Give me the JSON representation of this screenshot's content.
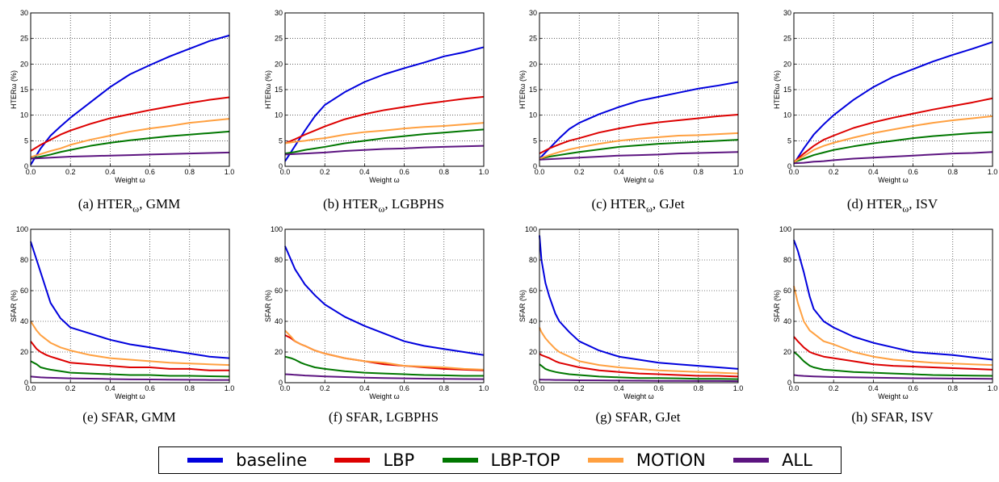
{
  "series_colors": {
    "baseline": "#0000dd",
    "LBP": "#dd0000",
    "LBP-TOP": "#007700",
    "MOTION": "#ffa040",
    "ALL": "#5c1480"
  },
  "legend": [
    {
      "name": "baseline",
      "color": "#0000dd"
    },
    {
      "name": "LBP",
      "color": "#dd0000"
    },
    {
      "name": "LBP-TOP",
      "color": "#007700"
    },
    {
      "name": "MOTION",
      "color": "#ffa040"
    },
    {
      "name": "ALL",
      "color": "#5c1480"
    }
  ],
  "chart_data": [
    {
      "type": "line",
      "caption_prefix": "(a) HTER",
      "caption_sub": "ω",
      "caption_suffix": ", GMM",
      "xlabel": "Weight ω",
      "ylabel": "HTERω (%)",
      "grid": true,
      "xlim": [
        0,
        1
      ],
      "ylim": [
        0,
        30
      ],
      "xticks": [
        "0.0",
        "0.2",
        "0.4",
        "0.6",
        "0.8",
        "1.0"
      ],
      "yticks": [
        "0",
        "5",
        "10",
        "15",
        "20",
        "25",
        "30"
      ],
      "x": [
        0,
        0.05,
        0.1,
        0.15,
        0.2,
        0.3,
        0.4,
        0.5,
        0.6,
        0.7,
        0.8,
        0.9,
        1.0
      ],
      "series": [
        {
          "name": "baseline",
          "values": [
            0.3,
            3.5,
            6.0,
            7.8,
            9.5,
            12.5,
            15.5,
            18.0,
            19.8,
            21.5,
            23.0,
            24.5,
            25.6
          ]
        },
        {
          "name": "LBP",
          "values": [
            3.0,
            4.2,
            5.2,
            6.2,
            7.0,
            8.3,
            9.4,
            10.2,
            11.0,
            11.7,
            12.4,
            13.0,
            13.5
          ]
        },
        {
          "name": "LBP-TOP",
          "values": [
            1.5,
            1.9,
            2.3,
            2.8,
            3.2,
            4.0,
            4.6,
            5.1,
            5.5,
            5.9,
            6.2,
            6.5,
            6.8
          ]
        },
        {
          "name": "MOTION",
          "values": [
            1.8,
            2.4,
            3.0,
            3.5,
            4.2,
            5.2,
            6.0,
            6.8,
            7.4,
            7.9,
            8.5,
            8.9,
            9.3
          ]
        },
        {
          "name": "ALL",
          "values": [
            1.5,
            1.6,
            1.7,
            1.8,
            1.9,
            2.0,
            2.1,
            2.2,
            2.3,
            2.4,
            2.5,
            2.6,
            2.7
          ]
        }
      ]
    },
    {
      "type": "line",
      "caption_prefix": "(b) HTER",
      "caption_sub": "ω",
      "caption_suffix": ", LGBPHS",
      "xlabel": "Weight ω",
      "ylabel": "HTERω (%)",
      "grid": true,
      "xlim": [
        0,
        1
      ],
      "ylim": [
        0,
        30
      ],
      "xticks": [
        "0.0",
        "0.2",
        "0.4",
        "0.6",
        "0.8",
        "1.0"
      ],
      "yticks": [
        "0",
        "5",
        "10",
        "15",
        "20",
        "25",
        "30"
      ],
      "x": [
        0,
        0.05,
        0.1,
        0.15,
        0.2,
        0.3,
        0.4,
        0.5,
        0.6,
        0.7,
        0.8,
        0.9,
        1.0
      ],
      "series": [
        {
          "name": "baseline",
          "values": [
            1.0,
            4.0,
            7.0,
            9.8,
            12.0,
            14.5,
            16.5,
            18.0,
            19.2,
            20.3,
            21.5,
            22.3,
            23.3
          ]
        },
        {
          "name": "LBP",
          "values": [
            4.5,
            5.3,
            6.2,
            7.0,
            7.8,
            9.2,
            10.2,
            11.0,
            11.6,
            12.2,
            12.7,
            13.2,
            13.6
          ]
        },
        {
          "name": "LBP-TOP",
          "values": [
            2.5,
            2.8,
            3.2,
            3.5,
            3.8,
            4.5,
            5.0,
            5.5,
            5.9,
            6.3,
            6.6,
            6.9,
            7.2
          ]
        },
        {
          "name": "MOTION",
          "values": [
            4.5,
            4.8,
            5.0,
            5.3,
            5.5,
            6.2,
            6.7,
            7.0,
            7.4,
            7.7,
            7.9,
            8.2,
            8.5
          ]
        },
        {
          "name": "ALL",
          "values": [
            2.3,
            2.4,
            2.5,
            2.6,
            2.7,
            3.0,
            3.2,
            3.4,
            3.5,
            3.7,
            3.8,
            3.9,
            4.0
          ]
        }
      ]
    },
    {
      "type": "line",
      "caption_prefix": "(c) HTER",
      "caption_sub": "ω",
      "caption_suffix": ", GJet",
      "xlabel": "Weight ω",
      "ylabel": "HTERω (%)",
      "grid": true,
      "xlim": [
        0,
        1
      ],
      "ylim": [
        0,
        30
      ],
      "xticks": [
        "0.0",
        "0.2",
        "0.4",
        "0.6",
        "0.8",
        "1.0"
      ],
      "yticks": [
        "0",
        "5",
        "10",
        "15",
        "20",
        "25",
        "30"
      ],
      "x": [
        0,
        0.05,
        0.1,
        0.15,
        0.2,
        0.3,
        0.4,
        0.5,
        0.6,
        0.7,
        0.8,
        0.9,
        1.0
      ],
      "series": [
        {
          "name": "baseline",
          "values": [
            1.5,
            3.5,
            5.5,
            7.3,
            8.5,
            10.2,
            11.6,
            12.8,
            13.6,
            14.4,
            15.2,
            15.8,
            16.5
          ]
        },
        {
          "name": "LBP",
          "values": [
            2.5,
            3.5,
            4.3,
            5.0,
            5.5,
            6.6,
            7.4,
            8.1,
            8.6,
            9.0,
            9.4,
            9.8,
            10.1
          ]
        },
        {
          "name": "LBP-TOP",
          "values": [
            1.5,
            1.9,
            2.2,
            2.5,
            2.8,
            3.3,
            3.8,
            4.1,
            4.4,
            4.6,
            4.8,
            5.0,
            5.2
          ]
        },
        {
          "name": "MOTION",
          "values": [
            1.5,
            2.2,
            2.8,
            3.3,
            3.7,
            4.4,
            5.0,
            5.4,
            5.7,
            6.0,
            6.1,
            6.3,
            6.5
          ]
        },
        {
          "name": "ALL",
          "values": [
            1.3,
            1.4,
            1.5,
            1.6,
            1.7,
            1.9,
            2.1,
            2.2,
            2.3,
            2.5,
            2.6,
            2.7,
            2.8
          ]
        }
      ]
    },
    {
      "type": "line",
      "caption_prefix": "(d) HTER",
      "caption_sub": "ω",
      "caption_suffix": ", ISV",
      "xlabel": "Weight ω",
      "ylabel": "HTERω (%)",
      "grid": true,
      "xlim": [
        0,
        1
      ],
      "ylim": [
        0,
        30
      ],
      "xticks": [
        "0.0",
        "0.2",
        "0.4",
        "0.6",
        "0.8",
        "1.0"
      ],
      "yticks": [
        "0",
        "5",
        "10",
        "15",
        "20",
        "25",
        "30"
      ],
      "x": [
        0,
        0.05,
        0.1,
        0.15,
        0.2,
        0.3,
        0.4,
        0.5,
        0.6,
        0.7,
        0.8,
        0.9,
        1.0
      ],
      "series": [
        {
          "name": "baseline",
          "values": [
            0.5,
            3.5,
            6.2,
            8.2,
            10.0,
            13.0,
            15.5,
            17.5,
            19.0,
            20.5,
            21.8,
            23.0,
            24.3
          ]
        },
        {
          "name": "LBP",
          "values": [
            0.8,
            2.5,
            4.0,
            5.2,
            6.0,
            7.5,
            8.6,
            9.5,
            10.3,
            11.1,
            11.8,
            12.5,
            13.3
          ]
        },
        {
          "name": "LBP-TOP",
          "values": [
            0.8,
            1.5,
            2.2,
            2.7,
            3.2,
            3.9,
            4.5,
            5.0,
            5.5,
            5.9,
            6.2,
            6.5,
            6.7
          ]
        },
        {
          "name": "MOTION",
          "values": [
            0.8,
            2.0,
            3.2,
            4.0,
            4.6,
            5.6,
            6.5,
            7.2,
            7.9,
            8.5,
            9.0,
            9.4,
            9.8
          ]
        },
        {
          "name": "ALL",
          "values": [
            0.6,
            0.7,
            0.9,
            1.0,
            1.2,
            1.5,
            1.7,
            1.9,
            2.1,
            2.3,
            2.5,
            2.6,
            2.8
          ]
        }
      ]
    },
    {
      "type": "line",
      "caption_prefix": "(e) SFAR, GMM",
      "caption_sub": "",
      "caption_suffix": "",
      "xlabel": "Weight ω",
      "ylabel": "SFAR (%)",
      "grid": true,
      "xlim": [
        0,
        1
      ],
      "ylim": [
        0,
        100
      ],
      "xticks": [
        "0.0",
        "0.2",
        "0.4",
        "0.6",
        "0.8",
        "1.0"
      ],
      "yticks": [
        "0",
        "20",
        "40",
        "60",
        "80",
        "100"
      ],
      "x": [
        0,
        0.03,
        0.05,
        0.08,
        0.1,
        0.15,
        0.2,
        0.3,
        0.4,
        0.5,
        0.6,
        0.7,
        0.8,
        0.9,
        1.0
      ],
      "series": [
        {
          "name": "baseline",
          "values": [
            92,
            80,
            72,
            60,
            52,
            42,
            36,
            32,
            28,
            25,
            23,
            21,
            19,
            17,
            16
          ]
        },
        {
          "name": "LBP",
          "values": [
            27,
            22,
            20,
            18,
            17,
            15,
            13,
            12,
            11,
            10,
            10,
            9,
            9,
            8,
            8
          ]
        },
        {
          "name": "LBP-TOP",
          "values": [
            14,
            12,
            10,
            9,
            8.5,
            7.5,
            6.5,
            6,
            5.5,
            5,
            5,
            4.5,
            4.5,
            4.2,
            4
          ]
        },
        {
          "name": "MOTION",
          "values": [
            40,
            34,
            31,
            28,
            26,
            23,
            21,
            18,
            16,
            15,
            14,
            13,
            12.5,
            12,
            11.5
          ]
        },
        {
          "name": "ALL",
          "values": [
            4,
            3.7,
            3.5,
            3.3,
            3.2,
            3,
            2.8,
            2.6,
            2.4,
            2.2,
            2.1,
            2,
            1.9,
            1.8,
            1.8
          ]
        }
      ]
    },
    {
      "type": "line",
      "caption_prefix": "(f) SFAR, LGBPHS",
      "caption_sub": "",
      "caption_suffix": "",
      "xlabel": "Weight ω",
      "ylabel": "SFAR (%)",
      "grid": true,
      "xlim": [
        0,
        1
      ],
      "ylim": [
        0,
        100
      ],
      "xticks": [
        "0.0",
        "0.2",
        "0.4",
        "0.6",
        "0.8",
        "1.0"
      ],
      "yticks": [
        "0",
        "20",
        "40",
        "60",
        "80",
        "100"
      ],
      "x": [
        0,
        0.03,
        0.05,
        0.08,
        0.1,
        0.15,
        0.2,
        0.3,
        0.4,
        0.5,
        0.6,
        0.7,
        0.8,
        0.9,
        1.0
      ],
      "series": [
        {
          "name": "baseline",
          "values": [
            89,
            80,
            74,
            68,
            64,
            57,
            51,
            43,
            37,
            32,
            27,
            24,
            22,
            20,
            18
          ]
        },
        {
          "name": "LBP",
          "values": [
            31,
            29,
            27,
            25,
            24,
            21,
            19,
            16,
            14,
            12,
            11,
            10,
            9,
            8.5,
            8
          ]
        },
        {
          "name": "LBP-TOP",
          "values": [
            17,
            16,
            15,
            13,
            12,
            10,
            9,
            7.5,
            6.5,
            6,
            5.5,
            5,
            4.8,
            4.5,
            4.5
          ]
        },
        {
          "name": "MOTION",
          "values": [
            34,
            30,
            27,
            25,
            24,
            21,
            19,
            16,
            14,
            13,
            11,
            10.5,
            10,
            9,
            8.5
          ]
        },
        {
          "name": "ALL",
          "values": [
            5.5,
            5.3,
            5.1,
            4.9,
            4.7,
            4.4,
            4.1,
            3.7,
            3.3,
            3,
            2.8,
            2.6,
            2.5,
            2.4,
            2.3
          ]
        }
      ]
    },
    {
      "type": "line",
      "caption_prefix": "(g) SFAR, GJet",
      "caption_sub": "",
      "caption_suffix": "",
      "xlabel": "Weight ω",
      "ylabel": "SFAR (%)",
      "grid": true,
      "xlim": [
        0,
        1
      ],
      "ylim": [
        0,
        100
      ],
      "xticks": [
        "0.0",
        "0.2",
        "0.4",
        "0.6",
        "0.8",
        "1.0"
      ],
      "yticks": [
        "0",
        "20",
        "40",
        "60",
        "80",
        "100"
      ],
      "x": [
        0,
        0.01,
        0.03,
        0.05,
        0.08,
        0.1,
        0.15,
        0.2,
        0.3,
        0.4,
        0.5,
        0.6,
        0.7,
        0.8,
        0.9,
        1.0
      ],
      "series": [
        {
          "name": "baseline",
          "values": [
            96,
            80,
            65,
            56,
            45,
            40,
            33,
            27,
            21,
            17,
            15,
            13,
            12,
            11,
            10,
            9
          ]
        },
        {
          "name": "LBP",
          "values": [
            19,
            18,
            17,
            16,
            14,
            13,
            11.5,
            10,
            8,
            7,
            6,
            5.5,
            5,
            4.5,
            4.5,
            4
          ]
        },
        {
          "name": "LBP-TOP",
          "values": [
            12,
            11,
            9,
            8,
            7,
            6.5,
            5.5,
            5,
            4,
            3.5,
            3,
            3,
            2.8,
            2.5,
            2.5,
            2.3
          ]
        },
        {
          "name": "MOTION",
          "values": [
            36,
            33,
            29,
            26,
            22,
            20,
            17,
            14,
            11.5,
            10,
            9,
            8,
            7.5,
            7,
            6.5,
            6
          ]
        },
        {
          "name": "ALL",
          "values": [
            2,
            2,
            1.9,
            1.9,
            1.8,
            1.8,
            1.7,
            1.6,
            1.5,
            1.4,
            1.3,
            1.2,
            1.2,
            1.1,
            1.1,
            1
          ]
        }
      ]
    },
    {
      "type": "line",
      "caption_prefix": "(h) SFAR, ISV",
      "caption_sub": "",
      "caption_suffix": "",
      "xlabel": "Weight ω",
      "ylabel": "SFAR (%)",
      "grid": true,
      "xlim": [
        0,
        1
      ],
      "ylim": [
        0,
        100
      ],
      "xticks": [
        "0.0",
        "0.2",
        "0.4",
        "0.6",
        "0.8",
        "1.0"
      ],
      "yticks": [
        "0",
        "20",
        "40",
        "60",
        "80",
        "100"
      ],
      "x": [
        0,
        0.02,
        0.05,
        0.08,
        0.1,
        0.15,
        0.2,
        0.3,
        0.4,
        0.5,
        0.6,
        0.7,
        0.8,
        0.9,
        1.0
      ],
      "series": [
        {
          "name": "baseline",
          "values": [
            93,
            86,
            72,
            56,
            48,
            40,
            36,
            30,
            26,
            23,
            20,
            19,
            18,
            16.5,
            15
          ]
        },
        {
          "name": "LBP",
          "values": [
            30,
            27,
            23,
            20,
            19,
            17,
            16,
            14,
            12,
            11,
            10.5,
            10,
            9.5,
            9,
            8.5
          ]
        },
        {
          "name": "LBP-TOP",
          "values": [
            20,
            18,
            14,
            11,
            10,
            8.5,
            8,
            7,
            6.5,
            6,
            5.5,
            5,
            4.8,
            4.6,
            4.5
          ]
        },
        {
          "name": "MOTION",
          "values": [
            63,
            52,
            40,
            34,
            32,
            27,
            25,
            20,
            17,
            15,
            14,
            13,
            12.5,
            12,
            11.5
          ]
        },
        {
          "name": "ALL",
          "values": [
            5,
            4.7,
            4.4,
            4.2,
            4.1,
            3.9,
            3.7,
            3.5,
            3.3,
            3.1,
            2.9,
            2.8,
            2.7,
            2.6,
            2.5
          ]
        }
      ]
    }
  ]
}
